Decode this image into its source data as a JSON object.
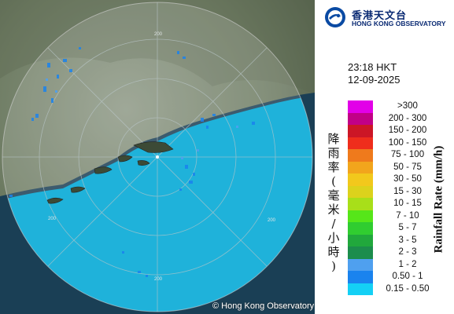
{
  "logo": {
    "name_cn": "香港天文台",
    "name_en": "HONG KONG OBSERVATORY",
    "icon": "hko-logo-icon"
  },
  "timestamp": {
    "time": "23:18 HKT",
    "date": "12-09-2025"
  },
  "legend": {
    "title_cn": "降雨率(毫米/小時)",
    "title_en": "Rainfall Rate (mm/h)",
    "ranges": [
      {
        "label": ">300",
        "color": "#e200e8"
      },
      {
        "label": "200 - 300",
        "color": "#c10087"
      },
      {
        "label": "150 - 200",
        "color": "#cc1626"
      },
      {
        "label": "100 - 150",
        "color": "#ef2d1c"
      },
      {
        "label": "75 - 100",
        "color": "#ef7a1c"
      },
      {
        "label": "50 - 75",
        "color": "#f2a51c"
      },
      {
        "label": "30 - 50",
        "color": "#f2c81c"
      },
      {
        "label": "15 - 30",
        "color": "#dcd21c"
      },
      {
        "label": "10 - 15",
        "color": "#a8df19"
      },
      {
        "label": "7 - 10",
        "color": "#56e619"
      },
      {
        "label": "5 - 7",
        "color": "#30cd30"
      },
      {
        "label": "3 - 5",
        "color": "#21a83c"
      },
      {
        "label": "2 - 3",
        "color": "#1c8d4c"
      },
      {
        "label": "1 - 2",
        "color": "#4fa0ef"
      },
      {
        "label": "0.50 - 1",
        "color": "#1a83ee"
      },
      {
        "label": "0.15 - 0.50",
        "color": "#14d0f5"
      }
    ]
  },
  "map": {
    "range_ring_labels": [
      "200",
      "200",
      "200",
      "200"
    ],
    "copyright": "© Hong Kong Observatory"
  }
}
